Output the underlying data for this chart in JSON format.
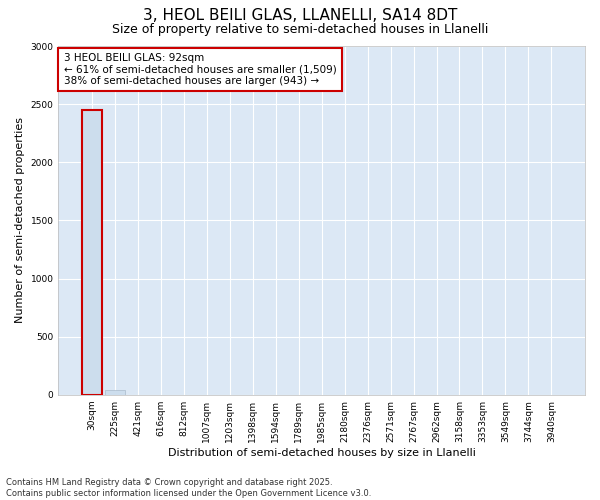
{
  "title_line1": "3, HEOL BEILI GLAS, LLANELLI, SA14 8DT",
  "title_line2": "Size of property relative to semi-detached houses in Llanelli",
  "xlabel": "Distribution of semi-detached houses by size in Llanelli",
  "ylabel": "Number of semi-detached properties",
  "categories": [
    "30sqm",
    "225sqm",
    "421sqm",
    "616sqm",
    "812sqm",
    "1007sqm",
    "1203sqm",
    "1398sqm",
    "1594sqm",
    "1789sqm",
    "1985sqm",
    "2180sqm",
    "2376sqm",
    "2571sqm",
    "2767sqm",
    "2962sqm",
    "3158sqm",
    "3353sqm",
    "3549sqm",
    "3744sqm",
    "3940sqm"
  ],
  "values": [
    2452,
    40,
    0,
    0,
    0,
    0,
    0,
    0,
    0,
    0,
    0,
    0,
    0,
    0,
    0,
    0,
    0,
    0,
    0,
    0,
    0
  ],
  "bar_color_normal": "#ccdded",
  "bar_edge_color": "#aabbcc",
  "annotation_box_color": "#cc0000",
  "annotation_box_text": "3 HEOL BEILI GLAS: 92sqm\n← 61% of semi-detached houses are smaller (1,509)\n38% of semi-detached houses are larger (943) →",
  "bg_color": "#dce8f5",
  "ylim": [
    0,
    3000
  ],
  "yticks": [
    0,
    500,
    1000,
    1500,
    2000,
    2500,
    3000
  ],
  "grid_color": "#ffffff",
  "footer_line1": "Contains HM Land Registry data © Crown copyright and database right 2025.",
  "footer_line2": "Contains public sector information licensed under the Open Government Licence v3.0.",
  "title_fontsize": 11,
  "subtitle_fontsize": 9,
  "tick_fontsize": 6.5,
  "label_fontsize": 8,
  "annotation_fontsize": 7.5,
  "footer_fontsize": 6
}
